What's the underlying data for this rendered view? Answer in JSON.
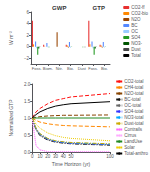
{
  "chart_data": [
    {
      "type": "bar",
      "annotations": [
        {
          "text": "GWP",
          "x": 2
        },
        {
          "text": "GTP",
          "x": 5.5
        }
      ],
      "categories": [
        "Foss.",
        "Biom.",
        "Nitr.",
        "Bio.",
        "Dust",
        "Foss.",
        "Bio."
      ],
      "series": [
        {
          "name": "CO2-ff",
          "color": "#e83030",
          "values": [
            4.5,
            0.32,
            0.0,
            0.32,
            0.0,
            4.5,
            0.32
          ]
        },
        {
          "name": "CO2-bio",
          "color": "#ff8800",
          "values": [
            0.4,
            0.04,
            0.0,
            0.22,
            0.0,
            0.4,
            0.22
          ]
        },
        {
          "name": "N2O",
          "color": "#994400",
          "values": [
            0.0,
            0.0,
            2.5,
            -0.15,
            0.0,
            0.0,
            -0.15
          ]
        },
        {
          "name": "BC",
          "color": "#5588ff",
          "values": [
            0.9,
            0.62,
            0.0,
            0.8,
            0.0,
            0.9,
            0.8
          ]
        },
        {
          "name": "OC",
          "color": "#99ccff",
          "values": [
            -0.28,
            -0.1,
            0.0,
            -0.15,
            0.0,
            -0.28,
            -0.15
          ]
        },
        {
          "name": "SO4",
          "color": "#229922",
          "values": [
            -1.4,
            -0.08,
            0.0,
            -0.04,
            -0.1,
            -1.4,
            -0.04
          ]
        },
        {
          "name": "NO3-",
          "color": "#005500",
          "values": [
            -0.32,
            0.0,
            0.0,
            0.0,
            0.0,
            -0.32,
            0.0
          ]
        },
        {
          "name": "Dust",
          "color": "#444444",
          "values": [
            -0.07,
            0.0,
            0.0,
            0.0,
            -0.1,
            -0.07,
            0.0
          ]
        },
        {
          "name": "Total",
          "color": "#000000",
          "values": [
            0.0,
            0.0,
            0.0,
            0.0,
            0.0,
            0.0,
            0.0
          ]
        }
      ],
      "ylabel": "W m⁻²",
      "ylim": [
        -3.0,
        6.0
      ],
      "yticks": [
        {
          "value": -2,
          "label": "−2"
        },
        0,
        2,
        4,
        6
      ],
      "grid": false,
      "legend": "right"
    },
    {
      "type": "line",
      "xlabel": "Time Horizon (yr)",
      "ylabel": "Normalized GTP",
      "x": [
        0,
        5,
        10,
        20,
        30,
        40,
        50,
        100
      ],
      "series": [
        {
          "name": "CO2-total",
          "color": "#ff1010",
          "line_style": "dashed",
          "values": [
            1.0,
            1.18,
            1.28,
            1.42,
            1.52,
            1.57,
            1.62,
            1.72
          ]
        },
        {
          "name": "CH4-total",
          "color": "#ff8800",
          "line_style": "dashed",
          "values": [
            1.0,
            0.93,
            0.88,
            0.83,
            0.8,
            0.78,
            0.77,
            0.74
          ]
        },
        {
          "name": "N2O-total",
          "color": "#884400",
          "line_style": "dashed",
          "values": [
            1.0,
            1.02,
            1.04,
            1.06,
            1.07,
            1.08,
            1.08,
            1.09
          ]
        },
        {
          "name": "BC-total",
          "color": "#111111",
          "line_style": "dashdot",
          "values": [
            1.0,
            0.65,
            0.48,
            0.35,
            0.29,
            0.26,
            0.24,
            0.2
          ]
        },
        {
          "name": "OC-total",
          "color": "#666666",
          "line_style": "dashdot",
          "values": [
            1.0,
            0.67,
            0.5,
            0.37,
            0.3,
            0.27,
            0.25,
            0.21
          ]
        },
        {
          "name": "SO4-total",
          "color": "#3333ff",
          "line_style": "dashdot",
          "values": [
            1.0,
            0.68,
            0.52,
            0.38,
            0.31,
            0.28,
            0.26,
            0.22
          ]
        },
        {
          "name": "NO3-total",
          "color": "#00aaff",
          "line_style": "dashdot",
          "values": [
            1.0,
            0.69,
            0.53,
            0.39,
            0.32,
            0.29,
            0.27,
            0.23
          ]
        },
        {
          "name": "Dust-total",
          "color": "#ccaa00",
          "line_style": "dashdot",
          "values": [
            1.0,
            0.7,
            0.54,
            0.4,
            0.33,
            0.3,
            0.28,
            0.24
          ]
        },
        {
          "name": "Contrails",
          "color": "#ff66ff",
          "line_style": "dotted",
          "values": [
            1.0,
            0.18,
            0.06,
            0.01,
            0.01,
            0.01,
            0.01,
            0.01
          ]
        },
        {
          "name": "Cirrus",
          "color": "#ffaaff",
          "line_style": "dotted",
          "values": [
            1.0,
            0.2,
            0.07,
            0.01,
            0.01,
            0.01,
            0.01,
            0.01
          ]
        },
        {
          "name": "LandUse",
          "color": "#228822",
          "line_style": "solid",
          "values": [
            1.0,
            1.0,
            1.0,
            1.0,
            1.0,
            1.0,
            1.0,
            1.0
          ]
        },
        {
          "name": "Solar",
          "color": "#eecc00",
          "line_style": "dotted",
          "values": [
            1.0,
            0.82,
            0.7,
            0.56,
            0.48,
            0.43,
            0.4,
            0.33
          ]
        },
        {
          "name": "Total-anthro",
          "color": "#000000",
          "line_style": "solid",
          "values": [
            1.0,
            1.1,
            1.18,
            1.28,
            1.35,
            1.39,
            1.42,
            1.48
          ]
        }
      ],
      "xlim": [
        0,
        100
      ],
      "xticks": [
        0,
        10,
        20,
        30,
        40,
        50,
        100
      ],
      "ylim": [
        0.0,
        2.0
      ],
      "yticks": [
        {
          "value": 0,
          "label": "0.0"
        },
        0.5,
        {
          "value": 1,
          "label": "1.0"
        },
        1.5,
        {
          "value": 2,
          "label": "2.0"
        }
      ],
      "grid": false,
      "legend": "right"
    }
  ]
}
